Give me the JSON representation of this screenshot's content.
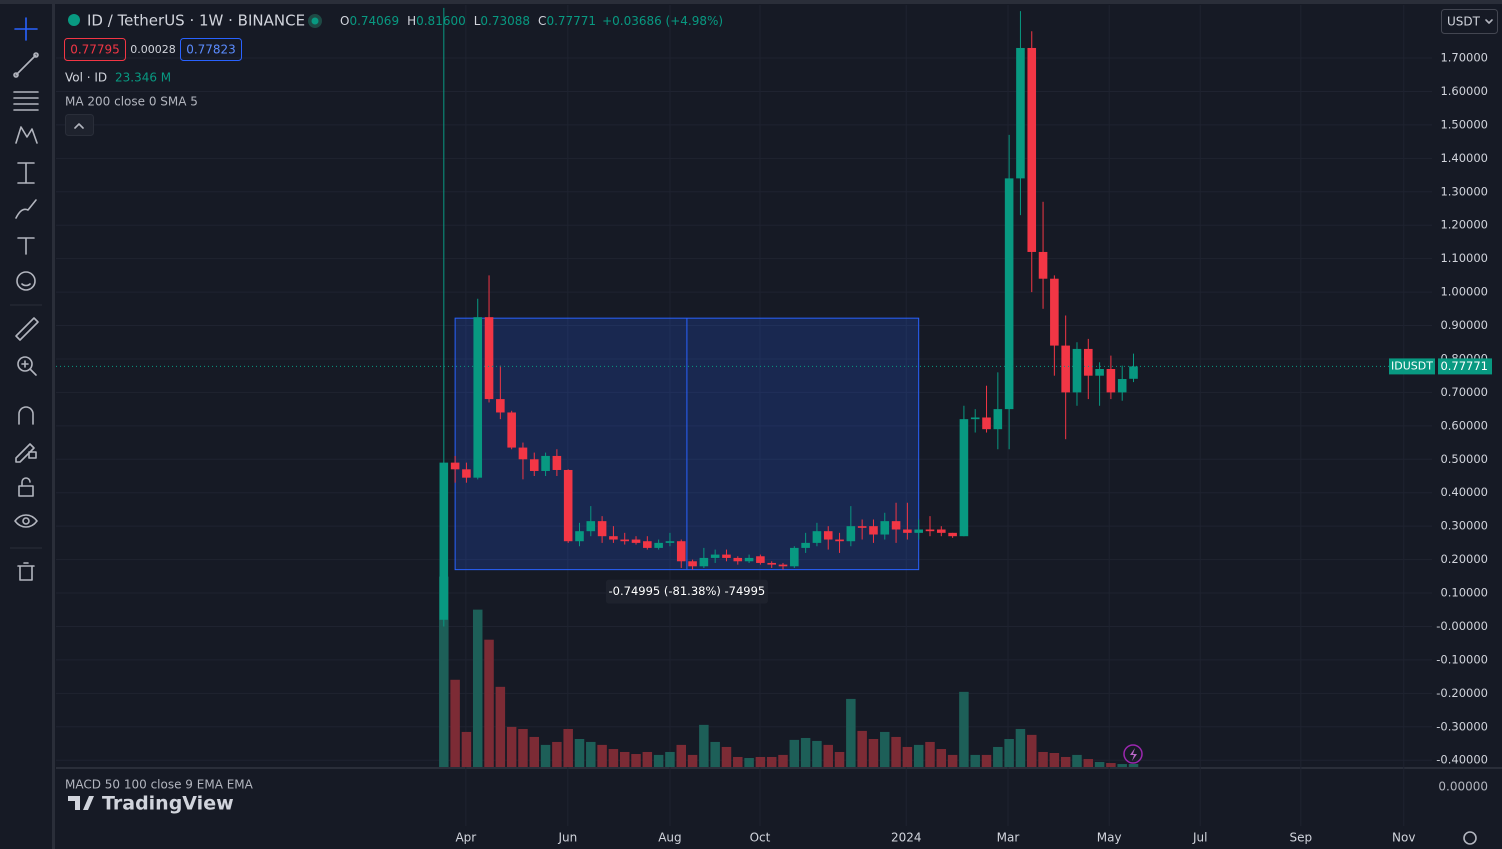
{
  "chart_data": {
    "type": "candlestick",
    "up_color": "#089981",
    "down_color": "#f23645",
    "up_volume_color": "#1d5f58",
    "down_volume_color": "#7c2b35",
    "grid": true,
    "x": [
      0,
      1,
      2,
      3,
      4,
      5,
      6,
      7,
      8,
      9,
      10,
      11,
      12,
      13,
      14,
      15,
      16,
      17,
      18,
      19,
      20,
      21,
      22,
      23,
      24,
      25,
      26,
      27,
      28,
      29,
      30,
      31,
      32,
      33,
      34,
      35,
      36,
      37,
      38,
      39,
      40,
      41,
      42,
      43,
      44,
      45,
      46,
      47,
      48,
      49,
      50,
      51,
      52,
      53,
      54,
      55,
      56,
      57,
      58,
      59,
      60,
      61
    ],
    "open": [
      0.02,
      0.49,
      0.47,
      0.445,
      0.925,
      0.68,
      0.64,
      0.535,
      0.5,
      0.465,
      0.51,
      0.468,
      0.255,
      0.285,
      0.315,
      0.27,
      0.26,
      0.26,
      0.255,
      0.235,
      0.25,
      0.255,
      0.195,
      0.18,
      0.205,
      0.215,
      0.205,
      0.195,
      0.21,
      0.19,
      0.185,
      0.18,
      0.235,
      0.25,
      0.285,
      0.26,
      0.255,
      0.3,
      0.3,
      0.275,
      0.315,
      0.29,
      0.28,
      0.29,
      0.29,
      0.28,
      0.27,
      0.62,
      0.625,
      0.59,
      0.65,
      1.34,
      1.73,
      1.12,
      1.04,
      0.84,
      0.7,
      0.83,
      0.75,
      0.77,
      0.7,
      0.74069
    ],
    "high": [
      1.85,
      0.51,
      0.49,
      0.98,
      1.05,
      0.78,
      0.645,
      0.55,
      0.52,
      0.52,
      0.53,
      0.47,
      0.31,
      0.36,
      0.33,
      0.3,
      0.28,
      0.27,
      0.27,
      0.26,
      0.28,
      0.26,
      0.2,
      0.235,
      0.23,
      0.23,
      0.21,
      0.215,
      0.215,
      0.195,
      0.19,
      0.24,
      0.28,
      0.31,
      0.3,
      0.28,
      0.36,
      0.32,
      0.32,
      0.34,
      0.37,
      0.37,
      0.32,
      0.33,
      0.3,
      0.28,
      0.66,
      0.65,
      0.72,
      0.76,
      1.47,
      1.84,
      1.78,
      1.27,
      1.05,
      0.93,
      0.85,
      0.86,
      0.79,
      0.81,
      0.78,
      0.816
    ],
    "low": [
      0.0,
      0.43,
      0.43,
      0.44,
      0.67,
      0.62,
      0.53,
      0.44,
      0.45,
      0.45,
      0.45,
      0.25,
      0.24,
      0.27,
      0.25,
      0.25,
      0.245,
      0.245,
      0.23,
      0.23,
      0.24,
      0.175,
      0.17,
      0.175,
      0.19,
      0.195,
      0.185,
      0.19,
      0.185,
      0.175,
      0.17,
      0.175,
      0.22,
      0.24,
      0.23,
      0.22,
      0.24,
      0.26,
      0.25,
      0.26,
      0.25,
      0.26,
      0.26,
      0.27,
      0.27,
      0.265,
      0.27,
      0.58,
      0.58,
      0.53,
      0.53,
      1.23,
      1.0,
      0.95,
      0.75,
      0.56,
      0.66,
      0.68,
      0.66,
      0.68,
      0.675,
      0.73088
    ],
    "close": [
      0.49,
      0.47,
      0.445,
      0.925,
      0.68,
      0.64,
      0.535,
      0.5,
      0.465,
      0.51,
      0.468,
      0.255,
      0.285,
      0.315,
      0.27,
      0.26,
      0.255,
      0.25,
      0.235,
      0.25,
      0.255,
      0.195,
      0.18,
      0.205,
      0.215,
      0.205,
      0.195,
      0.205,
      0.19,
      0.185,
      0.18,
      0.235,
      0.25,
      0.285,
      0.26,
      0.255,
      0.3,
      0.295,
      0.275,
      0.315,
      0.29,
      0.28,
      0.29,
      0.285,
      0.28,
      0.27,
      0.62,
      0.625,
      0.59,
      0.65,
      1.34,
      1.73,
      1.12,
      1.04,
      0.84,
      0.7,
      0.83,
      0.75,
      0.77,
      0.7,
      0.74,
      0.77771
    ],
    "volume": [
      1482,
      679,
      273,
      1225,
      991,
      624,
      312,
      296,
      234,
      172,
      195,
      296,
      218,
      195,
      172,
      140,
      117,
      101,
      117,
      94,
      117,
      172,
      94,
      328,
      195,
      156,
      78,
      70,
      78,
      78,
      94,
      211,
      226,
      203,
      172,
      117,
      530,
      281,
      218,
      273,
      234,
      156,
      172,
      195,
      140,
      94,
      585,
      94,
      94,
      156,
      218,
      296,
      250,
      117,
      109,
      78,
      94,
      62,
      39,
      31,
      23,
      23.346
    ],
    "vlim": [
      0,
      1300
    ],
    "xlim": [
      -34.3,
      87.4
    ],
    "xticks": [
      {
        "value": 1.95,
        "label": "Apr"
      },
      {
        "value": 10.97,
        "label": "Jun"
      },
      {
        "value": 20.0,
        "label": "Aug"
      },
      {
        "value": 27.96,
        "label": "Oct"
      },
      {
        "value": 40.9,
        "label": "2024"
      },
      {
        "value": 49.9,
        "label": "Mar"
      },
      {
        "value": 58.85,
        "label": "May"
      },
      {
        "value": 66.9,
        "label": "Jul"
      },
      {
        "value": 75.8,
        "label": "Sep"
      },
      {
        "value": 84.9,
        "label": "Nov"
      }
    ],
    "ylim": [
      -0.4232,
      1.8585
    ],
    "yticks": [
      {
        "value": 1.7,
        "label": "1.70000"
      },
      {
        "value": 1.6,
        "label": "1.60000"
      },
      {
        "value": 1.5,
        "label": "1.50000"
      },
      {
        "value": 1.4,
        "label": "1.40000"
      },
      {
        "value": 1.3,
        "label": "1.30000"
      },
      {
        "value": 1.2,
        "label": "1.20000"
      },
      {
        "value": 1.1,
        "label": "1.10000"
      },
      {
        "value": 1.0,
        "label": "1.00000"
      },
      {
        "value": 0.9,
        "label": "0.90000"
      },
      {
        "value": 0.8,
        "label": "0.80000"
      },
      {
        "value": 0.7,
        "label": "0.70000"
      },
      {
        "value": 0.6,
        "label": "0.60000"
      },
      {
        "value": 0.5,
        "label": "0.50000"
      },
      {
        "value": 0.4,
        "label": "0.40000"
      },
      {
        "value": 0.3,
        "label": "0.30000"
      },
      {
        "value": 0.2,
        "label": "0.20000"
      },
      {
        "value": 0.1,
        "label": "0.10000"
      },
      {
        "value": 0,
        "label": "-0.00000"
      },
      {
        "value": -0.1,
        "label": "-0.10000"
      },
      {
        "value": -0.2,
        "label": "-0.20000"
      },
      {
        "value": -0.3,
        "label": "-0.30000"
      },
      {
        "value": -0.4,
        "label": "-0.40000"
      }
    ],
    "measure": {
      "label": "-0.74995 (-81.38%) -74995",
      "from": 0.922,
      "to": 0.17,
      "start": 1,
      "end": 42
    }
  },
  "ui": {
    "symbol": "ID / TetherUS · 1W · BINANCE",
    "ohlc": [
      {
        "key": "O",
        "value": "0.74069"
      },
      {
        "key": "H",
        "value": "0.81600"
      },
      {
        "key": "L",
        "value": "0.73088"
      },
      {
        "key": "C",
        "value": "0.77771"
      }
    ],
    "change": "+0.03686 (+4.98%)",
    "sell": "0.77795",
    "spread": "0.00028",
    "buy": "0.77823",
    "vol_label": "Vol · ID",
    "vol_value": "23.346 M",
    "ma_label": "MA 200 close 0 SMA 5",
    "macd_label": "MACD 50 100 close 9 EMA EMA",
    "macd_zero": "0.00000",
    "currency": "USDT",
    "symbol_tag": "IDUSDT",
    "logo": "TradingView"
  }
}
